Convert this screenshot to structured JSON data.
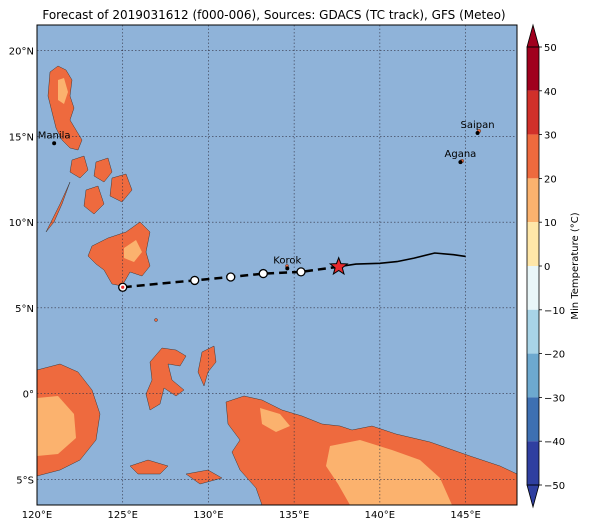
{
  "title": "Forecast of 2019031612 (f000-006), Sources: GDACS (TC track), GFS (Meteo)",
  "map": {
    "lon_range": [
      120,
      148
    ],
    "lat_range": [
      -6.5,
      21.5
    ],
    "ocean_color": "#8fb3d9",
    "grid": true,
    "lon_ticks": [
      "120°E",
      "125°E",
      "130°E",
      "135°E",
      "140°E",
      "145°E"
    ],
    "lat_ticks": [
      "20°N",
      "15°N",
      "10°N",
      "5°N",
      "0°",
      "5°S"
    ]
  },
  "cities": [
    {
      "name": "Manila",
      "lon": 121.0,
      "lat": 14.6
    },
    {
      "name": "Saipan",
      "lon": 145.7,
      "lat": 15.2
    },
    {
      "name": "Agana",
      "lon": 144.7,
      "lat": 13.5
    },
    {
      "name": "Korok",
      "lon": 134.6,
      "lat": 7.3
    }
  ],
  "track_past": [
    [
      137.6,
      7.4
    ],
    [
      138.6,
      7.55
    ],
    [
      140.0,
      7.6
    ],
    [
      141.0,
      7.7
    ],
    [
      142.0,
      7.9
    ],
    [
      143.2,
      8.2
    ],
    [
      144.3,
      8.1
    ],
    [
      145.0,
      8.0
    ]
  ],
  "track_forecast": [
    [
      137.6,
      7.4
    ],
    [
      135.4,
      7.1
    ],
    [
      133.2,
      7.0
    ],
    [
      131.3,
      6.8
    ],
    [
      129.2,
      6.6
    ],
    [
      127.0,
      6.4
    ],
    [
      125.0,
      6.2
    ]
  ],
  "forecast_points": [
    [
      135.4,
      7.1
    ],
    [
      133.2,
      7.0
    ],
    [
      131.3,
      6.8
    ],
    [
      129.2,
      6.6
    ],
    [
      125.0,
      6.2
    ]
  ],
  "current_position": [
    137.6,
    7.4
  ],
  "colorbar": {
    "label": "Min Temperature (°C)",
    "ticks": [
      "50",
      "40",
      "30",
      "20",
      "10",
      "0",
      "−10",
      "−20",
      "−30",
      "−40",
      "−50"
    ],
    "colors": [
      "#a0001e",
      "#d1302a",
      "#ee6a3e",
      "#fbb26e",
      "#ffe7a8",
      "#e9f6f8",
      "#a8d4e7",
      "#6da9cf",
      "#3e70b2",
      "#2f3fa0"
    ]
  },
  "land_colors": {
    "warm": "#ee6a3e",
    "light": "#fbb26e"
  }
}
